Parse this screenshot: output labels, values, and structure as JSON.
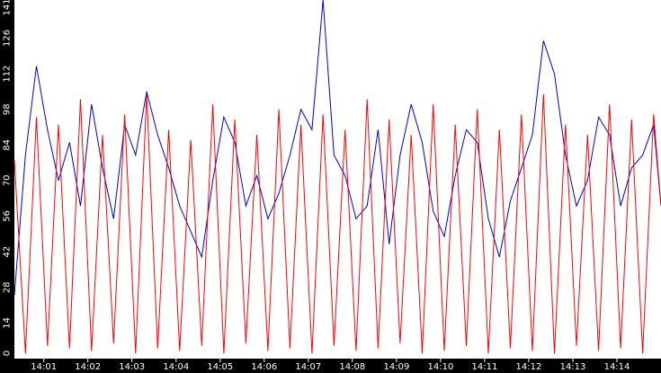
{
  "chart_data": {
    "type": "line",
    "title": "",
    "xlabel": "",
    "ylabel": "",
    "ylim": [
      0,
      141
    ],
    "y_ticks": [
      "0",
      "14",
      "28",
      "42",
      "56",
      "70",
      "84",
      "98",
      "112",
      "126",
      "141"
    ],
    "x_ticks": [
      "14:01",
      "14:02",
      "14:03",
      "14:04",
      "14:05",
      "14:06",
      "14:07",
      "14:08",
      "14:09",
      "14:10",
      "14:11",
      "14:12",
      "14:13",
      "14:14"
    ],
    "x_start": "14:00:20",
    "x_end": "14:15:00",
    "grid": false,
    "legend": "none",
    "background": "#ffffff",
    "axis_band_color": "#000000",
    "tick_label_color": "#ffffff",
    "series": [
      {
        "color": "#0000cc",
        "x": [
          "14:00:20",
          "14:00:35",
          "14:00:50",
          "14:01:05",
          "14:01:20",
          "14:01:35",
          "14:01:50",
          "14:02:05",
          "14:02:20",
          "14:02:35",
          "14:02:50",
          "14:03:05",
          "14:03:20",
          "14:03:35",
          "14:03:50",
          "14:04:05",
          "14:04:20",
          "14:04:35",
          "14:04:50",
          "14:05:05",
          "14:05:20",
          "14:05:35",
          "14:05:50",
          "14:06:05",
          "14:06:20",
          "14:06:35",
          "14:06:50",
          "14:07:05",
          "14:07:20",
          "14:07:35",
          "14:07:50",
          "14:08:05",
          "14:08:20",
          "14:08:35",
          "14:08:50",
          "14:09:05",
          "14:09:20",
          "14:09:35",
          "14:09:50",
          "14:10:05",
          "14:10:20",
          "14:10:35",
          "14:10:50",
          "14:11:05",
          "14:11:20",
          "14:11:35",
          "14:11:50",
          "14:12:05",
          "14:12:20",
          "14:12:35",
          "14:12:50",
          "14:13:05",
          "14:13:20",
          "14:13:35",
          "14:13:50",
          "14:14:05",
          "14:14:20",
          "14:14:35",
          "14:14:50",
          "14:15:00"
        ],
        "values": [
          25,
          80,
          115,
          90,
          70,
          85,
          60,
          100,
          75,
          55,
          92,
          80,
          105,
          88,
          75,
          60,
          50,
          40,
          70,
          95,
          85,
          60,
          72,
          55,
          65,
          80,
          98,
          90,
          141,
          80,
          72,
          55,
          60,
          90,
          45,
          80,
          100,
          85,
          58,
          48,
          72,
          90,
          85,
          55,
          40,
          62,
          75,
          88,
          125,
          112,
          80,
          60,
          70,
          95,
          88,
          60,
          75,
          80,
          92,
          60
        ]
      },
      {
        "color": "#ff0000",
        "x": [
          "14:00:20",
          "14:00:35",
          "14:00:50",
          "14:01:05",
          "14:01:20",
          "14:01:35",
          "14:01:50",
          "14:02:05",
          "14:02:20",
          "14:02:35",
          "14:02:50",
          "14:03:05",
          "14:03:20",
          "14:03:35",
          "14:03:50",
          "14:04:05",
          "14:04:20",
          "14:04:35",
          "14:04:50",
          "14:05:05",
          "14:05:20",
          "14:05:35",
          "14:05:50",
          "14:06:05",
          "14:06:20",
          "14:06:35",
          "14:06:50",
          "14:07:05",
          "14:07:20",
          "14:07:35",
          "14:07:50",
          "14:08:05",
          "14:08:20",
          "14:08:35",
          "14:08:50",
          "14:09:05",
          "14:09:20",
          "14:09:35",
          "14:09:50",
          "14:10:05",
          "14:10:20",
          "14:10:35",
          "14:10:50",
          "14:11:05",
          "14:11:20",
          "14:11:35",
          "14:11:50",
          "14:12:05",
          "14:12:20",
          "14:12:35",
          "14:12:50",
          "14:13:05",
          "14:13:20",
          "14:13:35",
          "14:13:50",
          "14:14:05",
          "14:14:20",
          "14:14:35",
          "14:14:50",
          "14:15:00"
        ],
        "values": [
          78,
          2,
          95,
          5,
          92,
          4,
          102,
          3,
          88,
          6,
          96,
          2,
          104,
          4,
          90,
          3,
          86,
          5,
          100,
          2,
          94,
          6,
          88,
          3,
          98,
          4,
          92,
          2,
          96,
          5,
          90,
          3,
          102,
          4,
          94,
          6,
          88,
          2,
          100,
          3,
          92,
          5,
          98,
          2,
          90,
          4,
          96,
          3,
          104,
          2,
          92,
          5,
          88,
          3,
          100,
          4,
          94,
          2,
          96,
          60
        ]
      }
    ]
  }
}
